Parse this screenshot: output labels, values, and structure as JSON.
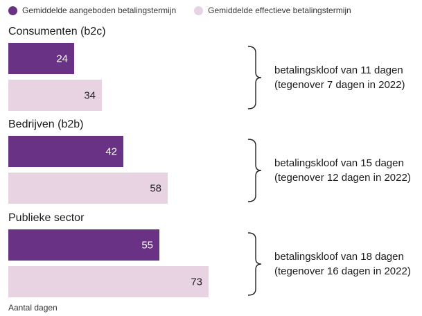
{
  "colors": {
    "offered": "#693284",
    "effective": "#e8d3e3"
  },
  "legend": {
    "offered": "Gemiddelde aangeboden betalingstermijn",
    "effective": "Gemiddelde effectieve betalingstermijn"
  },
  "axis_label": "Aantal dagen",
  "chart_data": {
    "type": "bar",
    "orientation": "horizontal",
    "categories": [
      "Consumenten (b2c)",
      "Bedrijven (b2b)",
      "Publieke sector"
    ],
    "series": [
      {
        "name": "Gemiddelde aangeboden betalingstermijn",
        "values": [
          24,
          42,
          55
        ]
      },
      {
        "name": "Gemiddelde effectieve betalingstermijn",
        "values": [
          34,
          58,
          73
        ]
      }
    ],
    "annotations": [
      {
        "line1": "betalingskloof van 11 dagen",
        "line2": "(tegenover 7 dagen in 2022)"
      },
      {
        "line1": "betalingskloof van 15 dagen",
        "line2": "(tegenover 12 dagen in 2022)"
      },
      {
        "line1": "betalingskloof van 18 dagen",
        "line2": "(tegenover 16 dagen in 2022)"
      }
    ],
    "xlabel": "Aantal dagen",
    "legend_position": "top-left",
    "grid": false
  }
}
